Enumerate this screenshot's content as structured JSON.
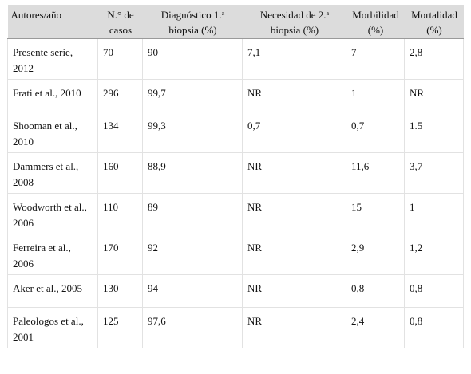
{
  "headers": [
    {
      "line1": "Autores/año",
      "line2": "",
      "sup": ""
    },
    {
      "line1": "N.° de",
      "line2": "casos",
      "sup": ""
    },
    {
      "line1": "Diagnóstico 1.",
      "line2": "biopsia (%)",
      "sup": "a"
    },
    {
      "line1": "Necesidad de 2.",
      "line2": "biopsia (%)",
      "sup": "a"
    },
    {
      "line1": "Morbilidad",
      "line2": "(%)",
      "sup": ""
    },
    {
      "line1": "Mortalidad",
      "line2": "(%)",
      "sup": ""
    }
  ],
  "rows": [
    [
      "Presente serie, 2012",
      "70",
      "90",
      "7,1",
      "7",
      "2,8"
    ],
    [
      "Frati et al., 2010",
      "296",
      "99,7",
      "NR",
      "1",
      "NR"
    ],
    [
      "Shooman et al., 2010",
      "134",
      "99,3",
      "0,7",
      "0,7",
      "1.5"
    ],
    [
      "Dammers et al., 2008",
      "160",
      "88,9",
      "NR",
      "11,6",
      "3,7"
    ],
    [
      "Woodworth et al., 2006",
      "110",
      "89",
      "NR",
      "15",
      "1"
    ],
    [
      "Ferreira et al., 2006",
      "170",
      "92",
      "NR",
      "2,9",
      "1,2"
    ],
    [
      "Aker et al., 2005",
      "130",
      "94",
      "NR",
      "0,8",
      "0,8"
    ],
    [
      "Paleologos et al., 2001",
      "125",
      "97,6",
      "NR",
      "2,4",
      "0,8"
    ]
  ]
}
